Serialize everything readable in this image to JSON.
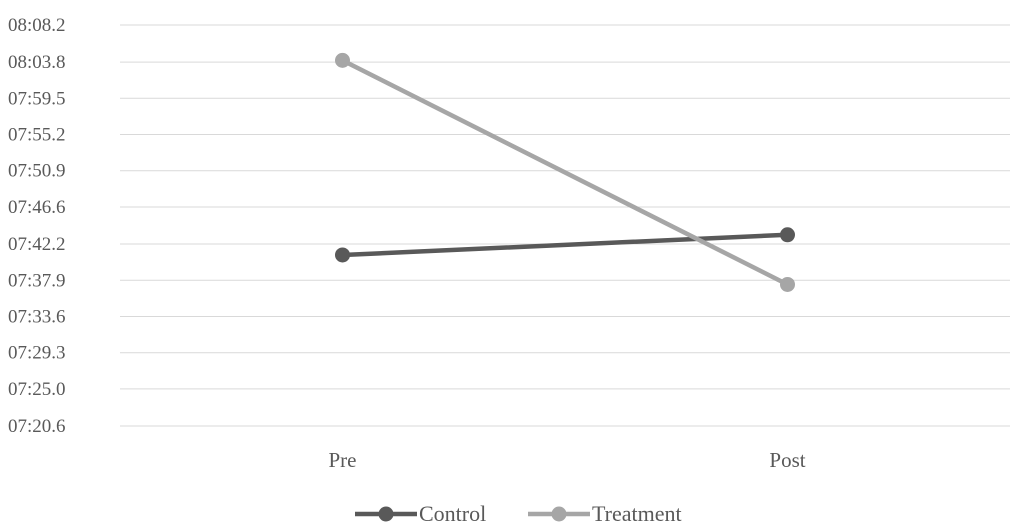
{
  "chart_data": {
    "type": "line",
    "categories": [
      "Pre",
      "Post"
    ],
    "y_tick_labels": [
      "07:20.6",
      "07:25.0",
      "07:29.3",
      "07:33.6",
      "07:37.9",
      "07:42.2",
      "07:46.6",
      "07:50.9",
      "07:55.2",
      "07:59.5",
      "08:03.8",
      "08:08.2"
    ],
    "ylim": [
      440.6,
      488.2
    ],
    "y_tick_values": [
      440.6,
      445.0,
      449.3,
      453.6,
      457.9,
      462.2,
      466.6,
      470.9,
      475.2,
      479.5,
      483.8,
      488.2
    ],
    "series": [
      {
        "name": "Control",
        "color": "#595959",
        "values": [
          460.9,
          463.3
        ]
      },
      {
        "name": "Treatment",
        "color": "#a6a6a6",
        "values": [
          484.0,
          457.4
        ]
      }
    ],
    "grid": true,
    "legend_position": "bottom"
  }
}
